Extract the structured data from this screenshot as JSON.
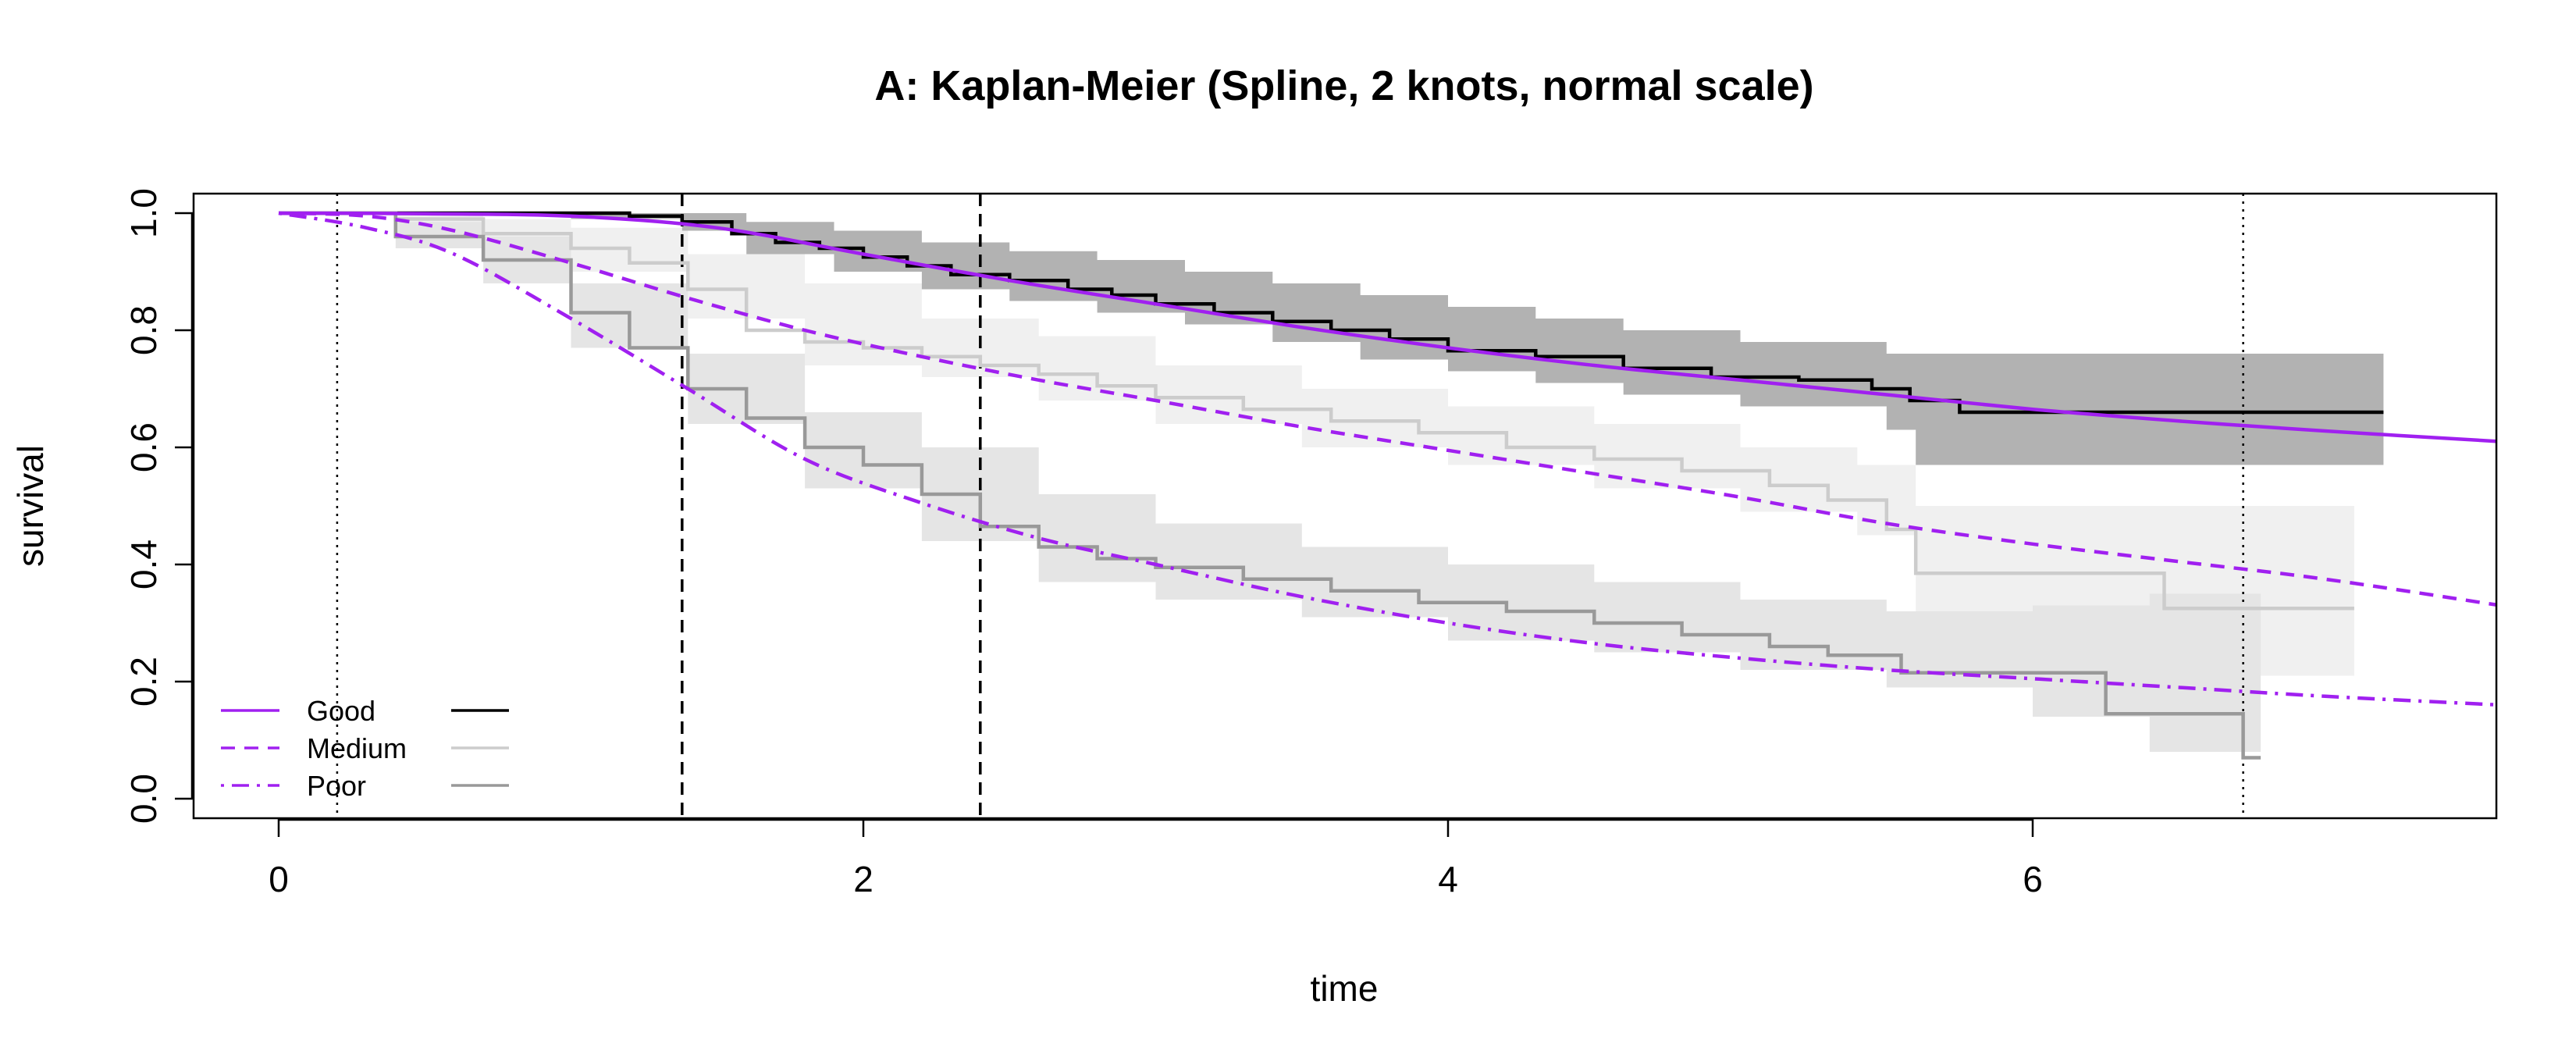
{
  "chart_data": {
    "type": "line",
    "title": "A: Kaplan-Meier (Spline, 2 knots, normal scale)",
    "xlabel": "time",
    "ylabel": "survival",
    "xlim": [
      -0.28,
      7.6
    ],
    "ylim": [
      -0.035,
      1.04
    ],
    "x_ticks": [
      0,
      2,
      4,
      6
    ],
    "y_ticks": [
      0.0,
      0.2,
      0.4,
      0.6,
      0.8,
      1.0
    ],
    "x_tick_labels": [
      "0",
      "2",
      "4",
      "6"
    ],
    "y_tick_labels": [
      "0.0",
      "0.2",
      "0.4",
      "0.6",
      "0.8",
      "1.0"
    ],
    "grid": false,
    "legend_position": "bottom-left",
    "colors": {
      "spline": "#A020F0",
      "km_good": "#000000",
      "km_medium": "#CCCCCC",
      "km_poor": "#999999",
      "band_good": "#B2B2B2",
      "band_medium": "#F0F0F0",
      "band_poor": "#E5E5E5"
    },
    "vlines": [
      {
        "x": 0.2,
        "style": "dotted"
      },
      {
        "x": 1.38,
        "style": "dashed"
      },
      {
        "x": 2.4,
        "style": "dashed"
      },
      {
        "x": 6.72,
        "style": "dotted"
      }
    ],
    "legend": [
      {
        "label": "Good",
        "dash": "solid"
      },
      {
        "label": "Medium",
        "dash": "dashed"
      },
      {
        "label": "Poor",
        "dash": "dotdash"
      }
    ],
    "splines": [
      {
        "group": "Good",
        "dash": "solid",
        "x": [
          0,
          0.5,
          1.0,
          1.5,
          2.0,
          2.5,
          3.0,
          3.5,
          4.0,
          4.5,
          5.0,
          5.5,
          6.0,
          6.5,
          7.0,
          7.6
        ],
        "y": [
          1.0,
          0.999,
          0.995,
          0.975,
          0.93,
          0.885,
          0.845,
          0.805,
          0.77,
          0.74,
          0.715,
          0.69,
          0.665,
          0.645,
          0.628,
          0.61
        ]
      },
      {
        "group": "Medium",
        "dash": "dashed",
        "x": [
          0,
          0.3,
          0.6,
          1.0,
          1.4,
          1.8,
          2.2,
          2.6,
          3.0,
          3.5,
          4.0,
          4.5,
          5.0,
          5.5,
          6.0,
          6.5,
          7.0,
          7.6
        ],
        "y": [
          1.0,
          0.995,
          0.97,
          0.915,
          0.855,
          0.8,
          0.755,
          0.715,
          0.68,
          0.635,
          0.595,
          0.555,
          0.515,
          0.47,
          0.435,
          0.405,
          0.375,
          0.33
        ]
      },
      {
        "group": "Poor",
        "dash": "dotdash",
        "x": [
          0,
          0.3,
          0.6,
          1.0,
          1.4,
          1.8,
          2.2,
          2.6,
          3.0,
          3.5,
          4.0,
          4.5,
          5.0,
          5.5,
          6.0,
          6.5,
          7.0,
          7.6
        ],
        "y": [
          1.0,
          0.975,
          0.93,
          0.82,
          0.7,
          0.58,
          0.505,
          0.445,
          0.4,
          0.345,
          0.3,
          0.265,
          0.24,
          0.22,
          0.205,
          0.19,
          0.175,
          0.16
        ]
      }
    ],
    "km_curves": [
      {
        "group": "Good",
        "color": "#000000",
        "x": [
          0,
          1.2,
          1.38,
          1.55,
          1.7,
          1.85,
          2.0,
          2.15,
          2.3,
          2.5,
          2.7,
          2.85,
          3.0,
          3.2,
          3.4,
          3.6,
          3.8,
          4.0,
          4.3,
          4.6,
          4.9,
          5.2,
          5.45,
          5.58,
          5.75,
          6.0,
          6.5,
          7.2
        ],
        "y": [
          1.0,
          0.995,
          0.985,
          0.965,
          0.95,
          0.94,
          0.925,
          0.91,
          0.895,
          0.885,
          0.87,
          0.86,
          0.845,
          0.83,
          0.815,
          0.8,
          0.785,
          0.765,
          0.755,
          0.735,
          0.72,
          0.715,
          0.7,
          0.68,
          0.66,
          0.66,
          0.66,
          0.66
        ]
      },
      {
        "group": "Medium",
        "color": "#CCCCCC",
        "x": [
          0,
          0.4,
          0.7,
          1.0,
          1.2,
          1.4,
          1.6,
          1.8,
          2.0,
          2.2,
          2.4,
          2.6,
          2.8,
          3.0,
          3.3,
          3.6,
          3.9,
          4.2,
          4.5,
          4.8,
          5.1,
          5.3,
          5.5,
          5.6,
          6.0,
          6.45,
          7.1
        ],
        "y": [
          1.0,
          0.99,
          0.965,
          0.94,
          0.915,
          0.87,
          0.8,
          0.78,
          0.77,
          0.755,
          0.74,
          0.725,
          0.705,
          0.685,
          0.665,
          0.645,
          0.625,
          0.6,
          0.58,
          0.56,
          0.535,
          0.51,
          0.46,
          0.385,
          0.385,
          0.325,
          0.325
        ]
      },
      {
        "group": "Poor",
        "color": "#999999",
        "x": [
          0,
          0.4,
          0.7,
          1.0,
          1.2,
          1.4,
          1.6,
          1.8,
          2.0,
          2.2,
          2.4,
          2.6,
          2.8,
          3.0,
          3.3,
          3.6,
          3.9,
          4.2,
          4.5,
          4.8,
          5.1,
          5.3,
          5.55,
          5.9,
          6.25,
          6.72,
          6.78
        ],
        "y": [
          1.0,
          0.96,
          0.92,
          0.83,
          0.77,
          0.7,
          0.65,
          0.6,
          0.57,
          0.52,
          0.465,
          0.43,
          0.41,
          0.395,
          0.375,
          0.355,
          0.335,
          0.32,
          0.3,
          0.28,
          0.26,
          0.245,
          0.215,
          0.215,
          0.145,
          0.07,
          0.07
        ]
      }
    ],
    "bands": [
      {
        "group": "Medium",
        "color": "#F0F0F0",
        "x": [
          0,
          0.4,
          0.7,
          1.0,
          1.4,
          1.8,
          2.2,
          2.6,
          3.0,
          3.5,
          4.0,
          4.5,
          5.0,
          5.4,
          5.6,
          6.0,
          6.5,
          7.1
        ],
        "lower": [
          1.0,
          0.98,
          0.94,
          0.9,
          0.82,
          0.74,
          0.72,
          0.68,
          0.64,
          0.6,
          0.57,
          0.53,
          0.49,
          0.45,
          0.31,
          0.26,
          0.21,
          0.21
        ],
        "upper": [
          1.0,
          1.0,
          0.99,
          0.975,
          0.93,
          0.88,
          0.82,
          0.79,
          0.74,
          0.7,
          0.67,
          0.64,
          0.6,
          0.57,
          0.5,
          0.5,
          0.5,
          0.5
        ]
      },
      {
        "group": "Poor",
        "color": "#E5E5E5",
        "x": [
          0,
          0.4,
          0.7,
          1.0,
          1.4,
          1.8,
          2.2,
          2.6,
          3.0,
          3.5,
          4.0,
          4.5,
          5.0,
          5.5,
          6.0,
          6.4,
          6.78
        ],
        "lower": [
          1.0,
          0.94,
          0.88,
          0.77,
          0.64,
          0.53,
          0.44,
          0.37,
          0.34,
          0.31,
          0.27,
          0.25,
          0.22,
          0.19,
          0.14,
          0.08,
          0.02
        ],
        "upper": [
          1.0,
          0.985,
          0.96,
          0.88,
          0.76,
          0.66,
          0.6,
          0.52,
          0.47,
          0.43,
          0.4,
          0.37,
          0.34,
          0.32,
          0.33,
          0.35,
          0.37
        ]
      },
      {
        "group": "Good",
        "color": "#B2B2B2",
        "x": [
          0,
          1.0,
          1.38,
          1.6,
          1.9,
          2.2,
          2.5,
          2.8,
          3.1,
          3.4,
          3.7,
          4.0,
          4.3,
          4.6,
          5.0,
          5.5,
          5.6,
          6.0,
          6.5,
          7.2
        ],
        "lower": [
          1.0,
          0.99,
          0.97,
          0.93,
          0.9,
          0.87,
          0.85,
          0.83,
          0.81,
          0.78,
          0.75,
          0.73,
          0.71,
          0.69,
          0.67,
          0.63,
          0.57,
          0.57,
          0.57,
          0.57
        ],
        "upper": [
          1.0,
          1.0,
          1.0,
          0.985,
          0.97,
          0.95,
          0.935,
          0.92,
          0.9,
          0.88,
          0.86,
          0.84,
          0.82,
          0.8,
          0.78,
          0.76,
          0.76,
          0.76,
          0.76,
          0.76
        ]
      }
    ]
  }
}
